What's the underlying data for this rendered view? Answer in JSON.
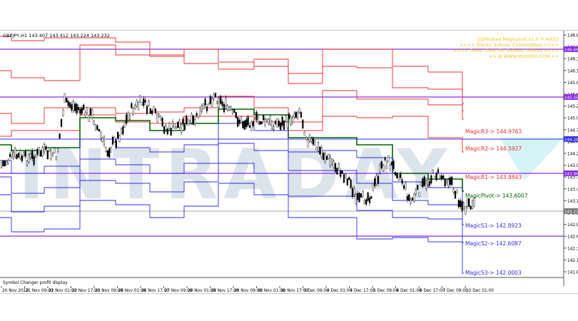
{
  "header": {
    "symbol_line": "GBPJPY,H1  143.407  143.412  143.224  143.232"
  },
  "status_bar": {
    "text": "Symbol Changer profit display"
  },
  "watermark": {
    "text": "INTRADAY"
  },
  "indicator_info": {
    "lines": [
      "[|||Moshed Magicpivot v1.0 ® Art|||]",
      "<<<< Stocks, Indices, Commodities >>>>",
      "<<<< Forex, Gold, Oil, Futures, Indices >>>>",
      ">> @ WWW.MOSHED.COM <<"
    ]
  },
  "levels": {
    "r3": "MagicR3-> 144.9763",
    "r2": "MagicR2-> 144.5927",
    "r1": "MagicR1-> 143.8843",
    "pivot": "MagicPivot-> 143.6007",
    "s1": "MagicS1-> 142.8923",
    "s2": "MagicS2-> 142.6087",
    "s3": "MagicS3-> 142.0003"
  },
  "price_axis": {
    "ticks": [
      "146.890",
      "146.600",
      "146.370",
      "146.110",
      "145.855",
      "145.555",
      "145.290",
      "145.005",
      "144.750",
      "144.490",
      "144.230",
      "143.970",
      "143.710",
      "143.450",
      "143.190",
      "143.140",
      "142.880",
      "142.620",
      "142.360",
      "142.100",
      "141.840"
    ],
    "markers": [
      {
        "label": "146.690",
        "color": "#8a2be2"
      },
      {
        "label": "145.555",
        "color": "#8a2be2"
      },
      {
        "label": "144.200",
        "color": "#3333dd"
      },
      {
        "label": "143.999",
        "color": "#8a2be2"
      },
      {
        "label": "143.232",
        "color": "#777777"
      }
    ]
  },
  "time_axis": {
    "labels": [
      "20 Nov 2018",
      "21 Nov 09:00",
      "22 Nov 01:00",
      "22 Nov 17:00",
      "23 Nov 09:00",
      "26 Nov 01:00",
      "26 Nov 17:00",
      "27 Nov 09:00",
      "28 Nov 01:00",
      "28 Nov 17:00",
      "29 Nov 09:00",
      "30 Nov 01:00",
      "30 Nov 17:00",
      "3 Dec 09:00",
      "4 Dec 01:00",
      "4 Dec 17:00",
      "5 Dec 09:00",
      "6 Dec 01:00",
      "6 Dec 17:00",
      "7 Dec 09:00",
      "10 Dec 01:00"
    ]
  },
  "colors": {
    "resistance": "#e53030",
    "support": "#2e2ee0",
    "pivot": "#006400",
    "purple": "#8a2be2",
    "info_text": "#f0c020",
    "candles": "#000000",
    "watermark": "#9ab0c8"
  }
}
